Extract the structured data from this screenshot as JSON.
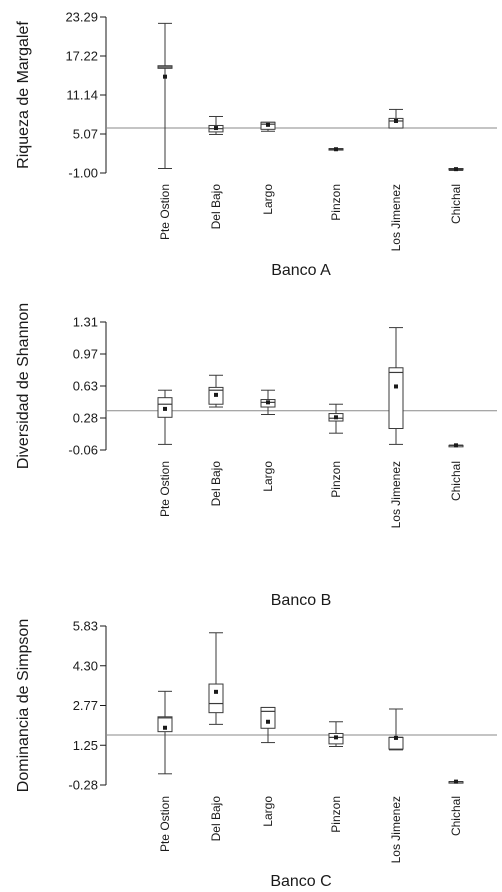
{
  "chart_data": [
    {
      "type": "box",
      "ylabel": "Riqueza de Margalef",
      "xlabel": "Banco A",
      "yticks": [
        "23.29",
        "17.22",
        "11.14",
        "5.07",
        "-1.00"
      ],
      "ylim": [
        -1.0,
        23.29
      ],
      "reference_line": 6.0,
      "categories": [
        "Pte Ostion",
        "Del Bajo",
        "Largo",
        "Pinzon",
        "Los Jimenez",
        "Chichal"
      ],
      "boxes": [
        {
          "min": -0.3,
          "q1": 15.3,
          "median": 15.5,
          "q3": 15.7,
          "max": 22.3,
          "mean": 14.0
        },
        {
          "min": 5.0,
          "q1": 5.4,
          "median": 5.9,
          "q3": 6.4,
          "max": 7.8,
          "mean": 6.0
        },
        {
          "min": 5.5,
          "q1": 5.8,
          "median": 6.6,
          "q3": 6.9,
          "max": 6.9,
          "mean": 6.5
        },
        {
          "min": 2.6,
          "q1": 2.6,
          "median": 2.7,
          "q3": 2.8,
          "max": 2.8,
          "mean": 2.7
        },
        {
          "min": 6.0,
          "q1": 6.0,
          "median": 7.1,
          "q3": 7.5,
          "max": 8.9,
          "mean": 7.1
        },
        {
          "min": -0.6,
          "q1": -0.4,
          "median": -0.4,
          "q3": -0.3,
          "max": -0.3,
          "mean": -0.4
        }
      ]
    },
    {
      "type": "box",
      "ylabel": "Diversidad de Shannon",
      "xlabel": "Banco B",
      "yticks": [
        "1.31",
        "0.97",
        "0.63",
        "0.28",
        "-0.06"
      ],
      "ylim": [
        -0.06,
        1.31
      ],
      "reference_line": 0.36,
      "categories": [
        "Pte Ostion",
        "Del Bajo",
        "Largo",
        "Pinzon",
        "Los Jimenez",
        "Chichal"
      ],
      "boxes": [
        {
          "min": 0.0,
          "q1": 0.29,
          "median": 0.43,
          "q3": 0.5,
          "max": 0.58,
          "mean": 0.38
        },
        {
          "min": 0.4,
          "q1": 0.43,
          "median": 0.58,
          "q3": 0.61,
          "max": 0.74,
          "mean": 0.53
        },
        {
          "min": 0.32,
          "q1": 0.4,
          "median": 0.45,
          "q3": 0.48,
          "max": 0.58,
          "mean": 0.45
        },
        {
          "min": 0.12,
          "q1": 0.25,
          "median": 0.28,
          "q3": 0.33,
          "max": 0.43,
          "mean": 0.29
        },
        {
          "min": 0.0,
          "q1": 0.17,
          "median": 0.77,
          "q3": 0.82,
          "max": 1.25,
          "mean": 0.62
        },
        {
          "min": -0.01,
          "q1": -0.01,
          "median": -0.01,
          "q3": -0.01,
          "max": -0.01,
          "mean": -0.01
        }
      ]
    },
    {
      "type": "box",
      "ylabel": "Dominancia de Simpson",
      "xlabel": "Banco C",
      "yticks": [
        "5.83",
        "4.30",
        "2.77",
        "1.25",
        "-0.28"
      ],
      "ylim": [
        -0.28,
        5.83
      ],
      "reference_line": 1.64,
      "categories": [
        "Pte Ostion",
        "Del Bajo",
        "Largo",
        "Pinzon",
        "Los Jimenez",
        "Chichal"
      ],
      "boxes": [
        {
          "min": 0.15,
          "q1": 1.77,
          "median": 2.3,
          "q3": 2.34,
          "max": 3.32,
          "mean": 1.92
        },
        {
          "min": 2.05,
          "q1": 2.5,
          "median": 2.85,
          "q3": 3.6,
          "max": 5.57,
          "mean": 3.3
        },
        {
          "min": 1.35,
          "q1": 1.9,
          "median": 2.55,
          "q3": 2.7,
          "max": 2.7,
          "mean": 2.15
        },
        {
          "min": 1.2,
          "q1": 1.3,
          "median": 1.55,
          "q3": 1.7,
          "max": 2.15,
          "mean": 1.55
        },
        {
          "min": 1.07,
          "q1": 1.1,
          "median": 1.55,
          "q3": 1.55,
          "max": 2.64,
          "mean": 1.53
        },
        {
          "min": -0.15,
          "q1": -0.15,
          "median": -0.15,
          "q3": -0.15,
          "max": -0.15,
          "mean": -0.15
        }
      ]
    }
  ]
}
